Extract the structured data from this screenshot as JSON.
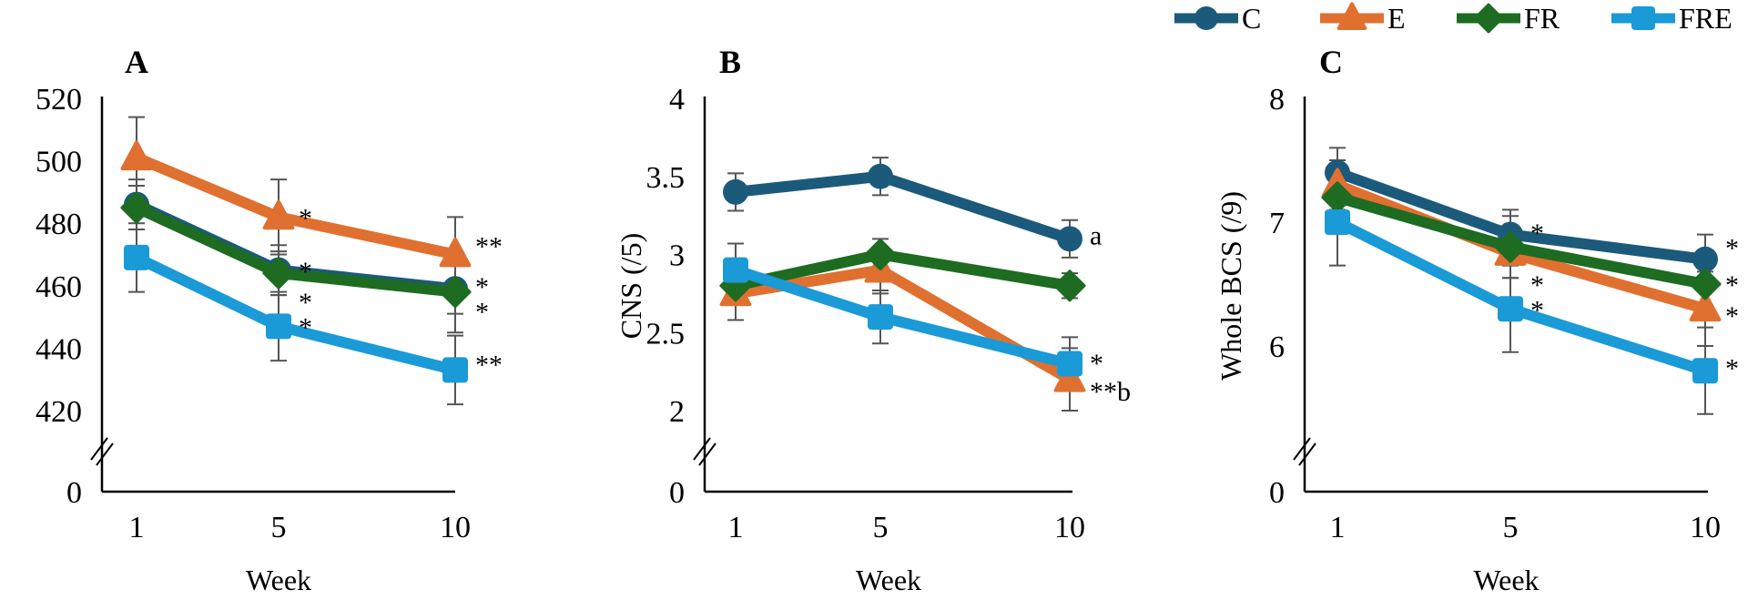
{
  "chart_data": {
    "type": "line",
    "legend": {
      "placement": "top-right",
      "entries": [
        {
          "name": "C",
          "color": "#1b5a7a",
          "marker": "circle"
        },
        {
          "name": "E",
          "color": "#e07030",
          "marker": "triangle"
        },
        {
          "name": "FR",
          "color": "#1e6b22",
          "marker": "diamond"
        },
        {
          "name": "FRE",
          "color": "#1a9ad6",
          "marker": "square"
        }
      ]
    },
    "panels": [
      {
        "title": "A",
        "xlabel": "Week",
        "ylabel": "",
        "categories": [
          "1",
          "5",
          "10"
        ],
        "yticks": [
          "520",
          "500",
          "480",
          "460",
          "440",
          "420"
        ],
        "ytick_values": [
          520,
          500,
          480,
          460,
          440,
          420
        ],
        "zero_label": "0",
        "axis_break": true,
        "series": [
          {
            "name": "C",
            "values": [
              486,
              465,
              459
            ],
            "errors": [
              8,
              8,
              8
            ]
          },
          {
            "name": "E",
            "values": [
              501,
              482,
              470
            ],
            "errors": [
              13,
              12,
              12
            ]
          },
          {
            "name": "FR",
            "values": [
              485,
              464,
              458
            ],
            "errors": [
              7,
              7,
              13
            ]
          },
          {
            "name": "FRE",
            "values": [
              469,
              447,
              433
            ],
            "errors": [
              11,
              11,
              11
            ]
          }
        ],
        "annotations": [
          {
            "text": "*",
            "x": "5",
            "y": 484
          },
          {
            "text": "*",
            "x": "5",
            "y": 467
          },
          {
            "text": "*",
            "x": "5",
            "y": 457
          },
          {
            "text": "*",
            "x": "5",
            "y": 449
          },
          {
            "text": "**",
            "x": "10",
            "y": 475
          },
          {
            "text": "*",
            "x": "10",
            "y": 462
          },
          {
            "text": "*",
            "x": "10",
            "y": 454
          },
          {
            "text": "**",
            "x": "10",
            "y": 437
          }
        ]
      },
      {
        "title": "B",
        "xlabel": "Week",
        "ylabel": "CNS (/5)",
        "categories": [
          "1",
          "5",
          "10"
        ],
        "yticks": [
          "4",
          "3.5",
          "3",
          "2.5",
          "2"
        ],
        "ytick_values": [
          4,
          3.5,
          3,
          2.5,
          2
        ],
        "zero_label": "0",
        "axis_break": true,
        "series": [
          {
            "name": "C",
            "values": [
              3.4,
              3.5,
              3.1
            ],
            "errors": [
              0.12,
              0.12,
              0.12
            ]
          },
          {
            "name": "E",
            "values": [
              2.75,
              2.9,
              2.2
            ],
            "errors": [
              0.17,
              0.15,
              0.2
            ]
          },
          {
            "name": "FR",
            "values": [
              2.8,
              3.0,
              2.8
            ],
            "errors": [
              0.1,
              0.1,
              0.08
            ]
          },
          {
            "name": "FRE",
            "values": [
              2.9,
              2.6,
              2.3
            ],
            "errors": [
              0.17,
              0.17,
              0.17
            ]
          }
        ],
        "annotations": [
          {
            "text": "a",
            "x": "10",
            "y": 3.17
          },
          {
            "text": "*",
            "x": "10",
            "y": 2.35
          },
          {
            "text": "**b",
            "x": "10",
            "y": 2.17
          }
        ]
      },
      {
        "title": "C",
        "xlabel": "Week",
        "ylabel": "Whole BCS (/9)",
        "categories": [
          "1",
          "5",
          "10"
        ],
        "yticks": [
          "8",
          "7",
          "6"
        ],
        "ytick_values": [
          8,
          7,
          6
        ],
        "zero_label": "0",
        "axis_break": true,
        "series": [
          {
            "name": "C",
            "values": [
              7.4,
              6.9,
              6.7
            ],
            "errors": [
              0.2,
              0.2,
              0.2
            ]
          },
          {
            "name": "E",
            "values": [
              7.3,
              6.75,
              6.3
            ],
            "errors": [
              0.2,
              0.2,
              0.3
            ]
          },
          {
            "name": "FR",
            "values": [
              7.2,
              6.8,
              6.5
            ],
            "errors": [
              0.2,
              0.25,
              0.25
            ]
          },
          {
            "name": "FRE",
            "values": [
              7.0,
              6.3,
              5.8
            ],
            "errors": [
              0.35,
              0.35,
              0.35
            ]
          }
        ],
        "annotations": [
          {
            "text": "*",
            "x": "5",
            "y": 6.97
          },
          {
            "text": "*",
            "x": "5",
            "y": 6.55
          },
          {
            "text": "*",
            "x": "5",
            "y": 6.35
          },
          {
            "text": "*",
            "x": "10",
            "y": 6.85
          },
          {
            "text": "*",
            "x": "10",
            "y": 6.55
          },
          {
            "text": "*",
            "x": "10",
            "y": 6.3
          },
          {
            "text": "*",
            "x": "10",
            "y": 5.88
          }
        ]
      }
    ]
  }
}
